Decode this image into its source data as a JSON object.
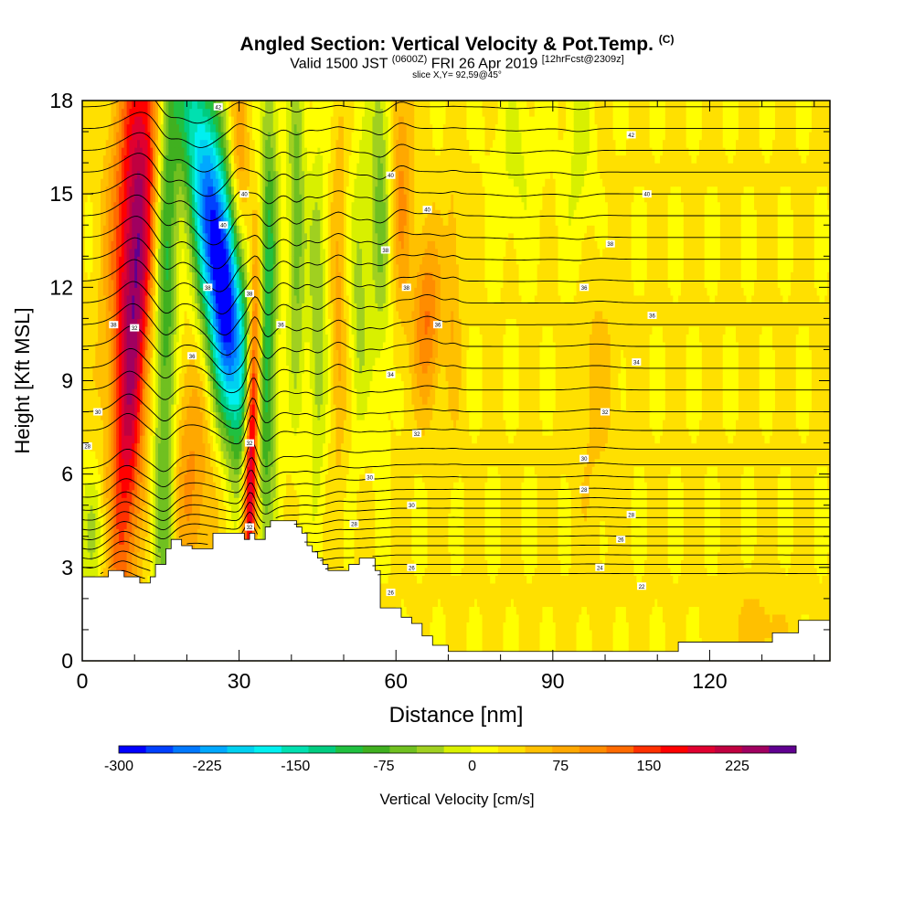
{
  "title": {
    "main": "Angled Section: Vertical Velocity & Pot.Temp.",
    "main_unit": "(C)",
    "valid_prefix": "Valid 1500 JST",
    "valid_zulu": "(0600Z)",
    "valid_date": "FRI 26 Apr 2019",
    "forecast": "[12hrFcst@2309z]",
    "slice": "slice X,Y= 92,59@45°"
  },
  "chart_data": {
    "type": "heatmap",
    "xlabel": "Distance [nm]",
    "ylabel": "Height [Kft MSL]",
    "xlim": [
      0,
      143
    ],
    "ylim": [
      0,
      18
    ],
    "x_ticks": [
      0,
      30,
      60,
      90,
      120
    ],
    "y_ticks": [
      0,
      3,
      6,
      9,
      12,
      15,
      18
    ],
    "colorbar": {
      "label": "Vertical Velocity [cm/s]",
      "tick_labels": [
        "-300",
        "-225",
        "-150",
        "-75",
        "0",
        "75",
        "150",
        "225"
      ],
      "tick_values": [
        -300,
        -225,
        -150,
        -75,
        0,
        75,
        150,
        225
      ],
      "range": [
        -300,
        275
      ],
      "colors": [
        "#0000ff",
        "#0040ff",
        "#0078ff",
        "#00a8ff",
        "#00d0f0",
        "#00f0f0",
        "#00e0b0",
        "#00cc80",
        "#20c040",
        "#40b020",
        "#70c020",
        "#a0d020",
        "#d8f000",
        "#ffff00",
        "#ffe000",
        "#ffc000",
        "#ffa800",
        "#ff8c00",
        "#ff6a00",
        "#ff3000",
        "#ff0000",
        "#e00030",
        "#c00040",
        "#a00060",
        "#600090"
      ]
    },
    "terrain_profile": [
      [
        0,
        2.7
      ],
      [
        1,
        2.7
      ],
      [
        2,
        2.7
      ],
      [
        3,
        2.7
      ],
      [
        4,
        2.7
      ],
      [
        5,
        2.9
      ],
      [
        6,
        2.9
      ],
      [
        7,
        2.9
      ],
      [
        8,
        2.7
      ],
      [
        9,
        2.7
      ],
      [
        10,
        2.7
      ],
      [
        11,
        2.5
      ],
      [
        12,
        2.5
      ],
      [
        13,
        2.7
      ],
      [
        14,
        3.1
      ],
      [
        15,
        3.1
      ],
      [
        16,
        3.6
      ],
      [
        17,
        3.9
      ],
      [
        18,
        3.9
      ],
      [
        19,
        3.7
      ],
      [
        20,
        3.7
      ],
      [
        21,
        3.6
      ],
      [
        22,
        3.6
      ],
      [
        23,
        3.6
      ],
      [
        24,
        3.6
      ],
      [
        25,
        4.1
      ],
      [
        26,
        4.1
      ],
      [
        27,
        4.1
      ],
      [
        28,
        4.1
      ],
      [
        29,
        4.1
      ],
      [
        30,
        4.1
      ],
      [
        31,
        3.9
      ],
      [
        32,
        4.1
      ],
      [
        33,
        3.9
      ],
      [
        34,
        3.9
      ],
      [
        35,
        4.3
      ],
      [
        36,
        4.5
      ],
      [
        37,
        4.5
      ],
      [
        38,
        4.5
      ],
      [
        39,
        4.5
      ],
      [
        40,
        4.5
      ],
      [
        41,
        4.3
      ],
      [
        42,
        4.1
      ],
      [
        43,
        3.7
      ],
      [
        44,
        3.5
      ],
      [
        45,
        3.3
      ],
      [
        46,
        3.1
      ],
      [
        47,
        2.9
      ],
      [
        48,
        2.9
      ],
      [
        49,
        2.9
      ],
      [
        50,
        2.9
      ],
      [
        51,
        3.1
      ],
      [
        52,
        3.1
      ],
      [
        53,
        3.3
      ],
      [
        54,
        3.3
      ],
      [
        55,
        3.3
      ],
      [
        56,
        2.9
      ],
      [
        57,
        1.7
      ],
      [
        58,
        1.7
      ],
      [
        59,
        1.7
      ],
      [
        60,
        1.7
      ],
      [
        61,
        1.4
      ],
      [
        62,
        1.4
      ],
      [
        63,
        1.2
      ],
      [
        64,
        1.2
      ],
      [
        65,
        0.8
      ],
      [
        66,
        0.8
      ],
      [
        67,
        0.5
      ],
      [
        68,
        0.5
      ],
      [
        69,
        0.5
      ],
      [
        70,
        0.3
      ],
      [
        71,
        0.3
      ],
      [
        72,
        0.3
      ],
      [
        73,
        0.3
      ],
      [
        74,
        0.3
      ],
      [
        75,
        0.3
      ],
      [
        76,
        0.3
      ],
      [
        77,
        0.3
      ],
      [
        78,
        0.3
      ],
      [
        79,
        0.3
      ],
      [
        80,
        0.3
      ],
      [
        81,
        0.3
      ],
      [
        82,
        0.3
      ],
      [
        83,
        0.3
      ],
      [
        84,
        0.3
      ],
      [
        85,
        0.3
      ],
      [
        86,
        0.3
      ],
      [
        87,
        0.3
      ],
      [
        88,
        0.3
      ],
      [
        89,
        0.3
      ],
      [
        90,
        0.3
      ],
      [
        91,
        0.3
      ],
      [
        92,
        0.3
      ],
      [
        93,
        0.3
      ],
      [
        94,
        0.3
      ],
      [
        95,
        0.3
      ],
      [
        96,
        0.3
      ],
      [
        97,
        0.3
      ],
      [
        98,
        0.3
      ],
      [
        99,
        0.3
      ],
      [
        100,
        0.3
      ],
      [
        101,
        0.3
      ],
      [
        102,
        0.3
      ],
      [
        103,
        0.3
      ],
      [
        104,
        0.3
      ],
      [
        105,
        0.3
      ],
      [
        106,
        0.3
      ],
      [
        107,
        0.3
      ],
      [
        108,
        0.3
      ],
      [
        109,
        0.3
      ],
      [
        110,
        0.3
      ],
      [
        111,
        0.3
      ],
      [
        112,
        0.3
      ],
      [
        113,
        0.3
      ],
      [
        114,
        0.6
      ],
      [
        115,
        0.6
      ],
      [
        116,
        0.6
      ],
      [
        117,
        0.6
      ],
      [
        118,
        0.6
      ],
      [
        119,
        0.6
      ],
      [
        120,
        0.6
      ],
      [
        121,
        0.6
      ],
      [
        122,
        0.6
      ],
      [
        123,
        0.6
      ],
      [
        124,
        0.6
      ],
      [
        125,
        0.6
      ],
      [
        126,
        0.6
      ],
      [
        127,
        0.6
      ],
      [
        128,
        0.6
      ],
      [
        129,
        0.6
      ],
      [
        130,
        0.6
      ],
      [
        131,
        0.6
      ],
      [
        132,
        0.9
      ],
      [
        133,
        0.9
      ],
      [
        134,
        0.9
      ],
      [
        135,
        0.9
      ],
      [
        136,
        0.9
      ],
      [
        137,
        1.3
      ],
      [
        138,
        1.3
      ],
      [
        139,
        1.3
      ],
      [
        140,
        1.3
      ],
      [
        141,
        1.3
      ],
      [
        142,
        1.3
      ],
      [
        143,
        1.3
      ]
    ],
    "velocity_features": [
      {
        "x": 10,
        "y": 11,
        "sx": 2.2,
        "sy": 7,
        "lean": 0.32,
        "amp": 200
      },
      {
        "x": 8,
        "y": 15,
        "sx": 2.5,
        "sy": 4,
        "lean": 0.3,
        "amp": 90
      },
      {
        "x": 16,
        "y": 11,
        "sx": 1.5,
        "sy": 9,
        "lean": 0.05,
        "amp": -120
      },
      {
        "x": 21,
        "y": 6,
        "sx": 3,
        "sy": 3,
        "lean": 0,
        "amp": 70
      },
      {
        "x": 25,
        "y": 14,
        "sx": 3,
        "sy": 4.5,
        "lean": -0.8,
        "amp": -240
      },
      {
        "x": 28,
        "y": 11,
        "sx": 3,
        "sy": 3,
        "lean": -0.5,
        "amp": -150
      },
      {
        "x": 32.5,
        "y": 7.5,
        "sx": 1,
        "sy": 3.5,
        "lean": 0.15,
        "amp": 280
      },
      {
        "x": 35.5,
        "y": 12,
        "sx": 1.3,
        "sy": 5,
        "lean": 0.05,
        "amp": -130
      },
      {
        "x": 30,
        "y": 15,
        "sx": 1.3,
        "sy": 3,
        "lean": 0,
        "amp": 80
      },
      {
        "x": 41,
        "y": 14,
        "sx": 1.2,
        "sy": 4,
        "lean": 0,
        "amp": -90
      },
      {
        "x": 45,
        "y": 11,
        "sx": 1.2,
        "sy": 4,
        "lean": 0,
        "amp": -70
      },
      {
        "x": 49,
        "y": 11.5,
        "sx": 1,
        "sy": 4,
        "lean": 0,
        "amp": 50
      },
      {
        "x": 53,
        "y": 12,
        "sx": 1.2,
        "sy": 3,
        "lean": 0,
        "amp": -60
      },
      {
        "x": 57,
        "y": 15,
        "sx": 1.5,
        "sy": 4,
        "lean": 0,
        "amp": -80
      },
      {
        "x": 61,
        "y": 15.5,
        "sx": 1.5,
        "sy": 3,
        "lean": 0,
        "amp": 70
      },
      {
        "x": 66,
        "y": 11,
        "sx": 2,
        "sy": 2,
        "lean": 0,
        "amp": 90
      },
      {
        "x": 71,
        "y": 12,
        "sx": 1,
        "sy": 3,
        "lean": 0,
        "amp": 40
      },
      {
        "x": 83,
        "y": 16,
        "sx": 3,
        "sy": 2,
        "lean": 0,
        "amp": -30
      },
      {
        "x": 95,
        "y": 16,
        "sx": 2,
        "sy": 3,
        "lean": 0,
        "amp": -35
      },
      {
        "x": 98,
        "y": 9,
        "sx": 3,
        "sy": 3,
        "lean": 0,
        "amp": 30
      },
      {
        "x": 2,
        "y": 4,
        "sx": 2,
        "sy": 1.5,
        "lean": 0,
        "amp": -50
      },
      {
        "x": 129,
        "y": 0.9,
        "sx": 4,
        "sy": 1,
        "lean": 0,
        "amp": 35
      }
    ],
    "background_velocity": 25,
    "isentropes": {
      "base_heights": [
        2.8,
        3.1,
        3.4,
        3.7,
        4.0,
        4.3,
        4.6,
        4.9,
        5.2,
        5.5,
        5.9,
        6.3,
        6.8,
        7.4,
        8.0,
        8.7,
        9.4,
        10.1,
        10.8,
        11.5,
        12.2,
        12.9,
        13.6,
        14.3,
        15.0,
        15.7,
        16.4,
        17.1,
        17.8
      ],
      "lowlevel_dip": {
        "x_end": 60,
        "amount": -0.6
      }
    },
    "contour_labels": [
      {
        "x": 6,
        "y": 10.8,
        "text": "38"
      },
      {
        "x": 10,
        "y": 10.7,
        "text": "32"
      },
      {
        "x": 3,
        "y": 8,
        "text": "30"
      },
      {
        "x": 1,
        "y": 6.9,
        "text": "28"
      },
      {
        "x": 21,
        "y": 9.8,
        "text": "36"
      },
      {
        "x": 24,
        "y": 12,
        "text": "38"
      },
      {
        "x": 27,
        "y": 14,
        "text": "40"
      },
      {
        "x": 31,
        "y": 15,
        "text": "40"
      },
      {
        "x": 26,
        "y": 17.8,
        "text": "42"
      },
      {
        "x": 32,
        "y": 11.8,
        "text": "38"
      },
      {
        "x": 32,
        "y": 7,
        "text": "32"
      },
      {
        "x": 38,
        "y": 10.8,
        "text": "36"
      },
      {
        "x": 32,
        "y": 4.3,
        "text": "32"
      },
      {
        "x": 59,
        "y": 15.6,
        "text": "40"
      },
      {
        "x": 66,
        "y": 14.5,
        "text": "40"
      },
      {
        "x": 58,
        "y": 13.2,
        "text": "38"
      },
      {
        "x": 62,
        "y": 12,
        "text": "38"
      },
      {
        "x": 68,
        "y": 10.8,
        "text": "36"
      },
      {
        "x": 59,
        "y": 9.2,
        "text": "34"
      },
      {
        "x": 64,
        "y": 7.3,
        "text": "32"
      },
      {
        "x": 55,
        "y": 5.9,
        "text": "30"
      },
      {
        "x": 63,
        "y": 5,
        "text": "30"
      },
      {
        "x": 52,
        "y": 4.4,
        "text": "28"
      },
      {
        "x": 63,
        "y": 3,
        "text": "26"
      },
      {
        "x": 59,
        "y": 2.2,
        "text": "26"
      },
      {
        "x": 105,
        "y": 16.9,
        "text": "42"
      },
      {
        "x": 108,
        "y": 15,
        "text": "40"
      },
      {
        "x": 101,
        "y": 13.4,
        "text": "38"
      },
      {
        "x": 96,
        "y": 12,
        "text": "36"
      },
      {
        "x": 109,
        "y": 11.1,
        "text": "36"
      },
      {
        "x": 106,
        "y": 9.6,
        "text": "34"
      },
      {
        "x": 100,
        "y": 8,
        "text": "32"
      },
      {
        "x": 96,
        "y": 6.5,
        "text": "30"
      },
      {
        "x": 96,
        "y": 5.5,
        "text": "28"
      },
      {
        "x": 105,
        "y": 4.7,
        "text": "28"
      },
      {
        "x": 103,
        "y": 3.9,
        "text": "26"
      },
      {
        "x": 99,
        "y": 3,
        "text": "24"
      },
      {
        "x": 107,
        "y": 2.4,
        "text": "22"
      }
    ]
  }
}
